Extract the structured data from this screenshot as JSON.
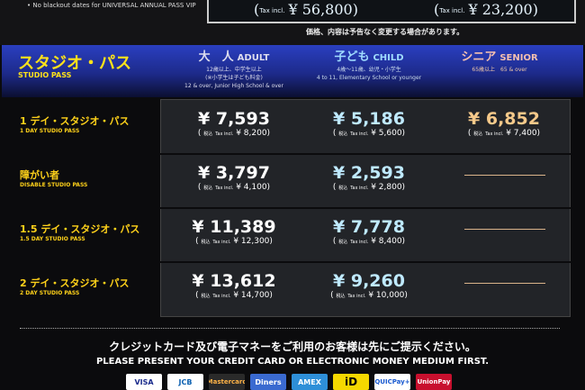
{
  "top": {
    "note": "• No blackout dates for UNIVERSAL ANNUAL PASS VIP",
    "tax_label": "Tax incl.",
    "price1": "¥ 56,800",
    "price2": "¥ 23,200",
    "change_note": "価格、内容は予告なく変更する場合があります。"
  },
  "header": {
    "title_jp": "スタジオ・パス",
    "title_en": "STUDIO PASS",
    "columns": [
      {
        "jp": "大　人",
        "en": "ADULT",
        "desc": [
          "12歳以上、中学生以上",
          "(※小学生は子ども料金)",
          "12 & over, Junior High School & over"
        ]
      },
      {
        "jp": "子ども",
        "en": "CHILD",
        "desc": [
          "4歳〜11歳、幼児・小学生",
          "4 to 11, Elementary School or younger"
        ]
      },
      {
        "jp": "シニア",
        "en": "SENIOR",
        "desc": [
          "65歳以上　65 & over"
        ]
      }
    ]
  },
  "tax_jp": "税込",
  "tax_en": "Tax incl.",
  "rows": [
    {
      "jp": "1 デイ・スタジオ・パス",
      "en": "1 DAY STUDIO PASS",
      "adult": "¥ 7,593",
      "adult_tax": "¥ 8,200",
      "child": "¥ 5,186",
      "child_tax": "¥ 5,600",
      "senior": "¥ 6,852",
      "senior_tax": "¥ 7,400"
    },
    {
      "jp": "障がい者",
      "en": "DISABLE STUDIO PASS",
      "adult": "¥ 3,797",
      "adult_tax": "¥ 4,100",
      "child": "¥ 2,593",
      "child_tax": "¥ 2,800"
    },
    {
      "jp": "1.5 デイ・スタジオ・パス",
      "en": "1.5 DAY STUDIO PASS",
      "adult": "¥ 11,389",
      "adult_tax": "¥ 12,300",
      "child": "¥ 7,778",
      "child_tax": "¥ 8,400"
    },
    {
      "jp": "2 デイ・スタジオ・パス",
      "en": "2 DAY STUDIO PASS",
      "adult": "¥ 13,612",
      "adult_tax": "¥ 14,700",
      "child": "¥ 9,260",
      "child_tax": "¥ 10,000"
    }
  ],
  "footer": {
    "jp": "クレジットカード及び電子マネーをご利用のお客様は先にご提示ください。",
    "en": "PLEASE PRESENT YOUR CREDIT CARD OR ELECTRONIC MONEY MEDIUM FIRST.",
    "cards": [
      "VISA",
      "JCB",
      "Mastercard",
      "Diners",
      "AMEX",
      "iD",
      "QUICPay+",
      "UnionPay"
    ]
  }
}
